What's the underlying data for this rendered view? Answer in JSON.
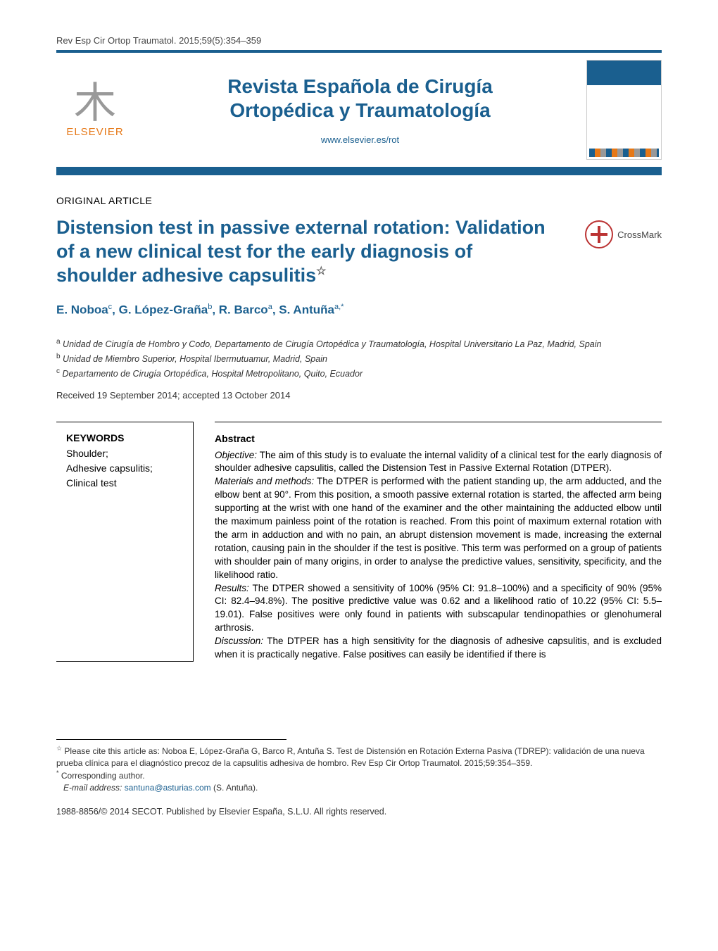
{
  "header": {
    "citation": "Rev Esp Cir Ortop Traumatol. 2015;59(5):354–359",
    "journal_line1": "Revista Española de Cirugía",
    "journal_line2": "Ortopédica y Traumatología",
    "url": "www.elsevier.es/rot",
    "publisher_logo_text": "ELSEVIER"
  },
  "article": {
    "section_label": "ORIGINAL ARTICLE",
    "title_line1": "Distension test in passive external rotation: Validation",
    "title_line2": "of a new clinical test for the early diagnosis of",
    "title_line3": "shoulder adhesive capsulitis",
    "star": "☆",
    "crossmark_label": "CrossMark"
  },
  "authors": {
    "list": "E. Noboaᶜ, G. López-Grañaᵇ, R. Barcoᵃ, S. Antuñaᵃ,*",
    "a1_name": "E. Noboa",
    "a1_sup": "c",
    "a2_name": "G. López-Graña",
    "a2_sup": "b",
    "a3_name": "R. Barco",
    "a3_sup": "a",
    "a4_name": "S. Antuña",
    "a4_sup": "a,*"
  },
  "affiliations": {
    "a": "Unidad de Cirugía de Hombro y Codo, Departamento de Cirugía Ortopédica y Traumatología, Hospital Universitario La Paz, Madrid, Spain",
    "b": "Unidad de Miembro Superior, Hospital Ibermutuamur, Madrid, Spain",
    "c": "Departamento de Cirugía Ortopédica, Hospital Metropolitano, Quito, Ecuador"
  },
  "dates": "Received 19 September 2014; accepted 13 October 2014",
  "keywords": {
    "heading": "KEYWORDS",
    "items": [
      "Shoulder;",
      "Adhesive capsulitis;",
      "Clinical test"
    ]
  },
  "abstract": {
    "heading": "Abstract",
    "objective_label": "Objective:",
    "objective": " The aim of this study is to evaluate the internal validity of a clinical test for the early diagnosis of shoulder adhesive capsulitis, called the Distension Test in Passive External Rotation (DTPER).",
    "methods_label": "Materials and methods:",
    "methods": " The DTPER is performed with the patient standing up, the arm adducted, and the elbow bent at 90°. From this position, a smooth passive external rotation is started, the affected arm being supporting at the wrist with one hand of the examiner and the other maintaining the adducted elbow until the maximum painless point of the rotation is reached. From this point of maximum external rotation with the arm in adduction and with no pain, an abrupt distension movement is made, increasing the external rotation, causing pain in the shoulder if the test is positive. This term was performed on a group of patients with shoulder pain of many origins, in order to analyse the predictive values, sensitivity, specificity, and the likelihood ratio.",
    "results_label": "Results:",
    "results": " The DTPER showed a sensitivity of 100% (95% CI: 91.8–100%) and a specificity of 90% (95% CI: 82.4–94.8%). The positive predictive value was 0.62 and a likelihood ratio of 10.22 (95% CI: 5.5–19.01). False positives were only found in patients with subscapular tendinopathies or glenohumeral arthrosis.",
    "discussion_label": "Discussion:",
    "discussion": " The DTPER has a high sensitivity for the diagnosis of adhesive capsulitis, and is excluded when it is practically negative. False positives can easily be identified if there is"
  },
  "footnotes": {
    "cite_star": "☆",
    "cite": " Please cite this article as: Noboa E, López-Graña G, Barco R, Antuña S. Test de Distensión en Rotación Externa Pasiva (TDREP): validación de una nueva prueba clínica para el diagnóstico precoz de la capsulitis adhesiva de hombro. Rev Esp Cir Ortop Traumatol. 2015;59:354–359.",
    "corresp_star": "*",
    "corresp": " Corresponding author.",
    "email_label": "E-mail address: ",
    "email": "santuna@asturias.com",
    "email_person": " (S. Antuña)."
  },
  "copyright": "1988-8856/© 2014 SECOT. Published by Elsevier España, S.L.U. All rights reserved.",
  "colors": {
    "brand": "#1a5f8f",
    "elsevier_orange": "#e67817",
    "text": "#000000",
    "muted": "#333333"
  }
}
